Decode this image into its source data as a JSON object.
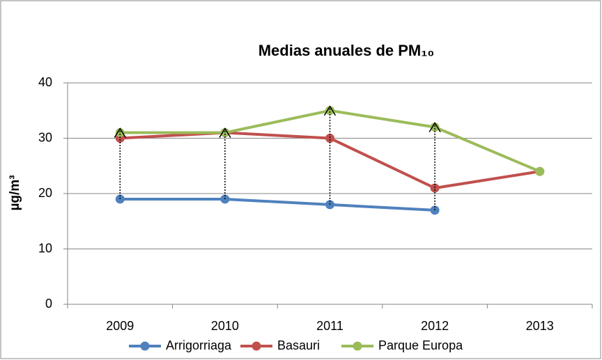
{
  "chart_data": {
    "type": "line",
    "title": "Medias anuales de PM₁₀",
    "y_label": "µg/m³",
    "categories": [
      "2009",
      "2010",
      "2011",
      "2012",
      "2013"
    ],
    "series": [
      {
        "name": "Arrigorriaga",
        "color": "#4f81bd",
        "values": [
          19,
          19,
          18,
          17,
          null
        ]
      },
      {
        "name": "Basauri",
        "color": "#c0504d",
        "values": [
          30,
          31,
          30,
          21,
          24
        ]
      },
      {
        "name": "Parque Europa",
        "color": "#9bbb59",
        "values": [
          31,
          31,
          35,
          32,
          24
        ]
      }
    ],
    "ylim": [
      0,
      40
    ],
    "yticks": [
      0,
      10,
      20,
      30,
      40
    ],
    "grid": true,
    "legend": "bottom"
  }
}
